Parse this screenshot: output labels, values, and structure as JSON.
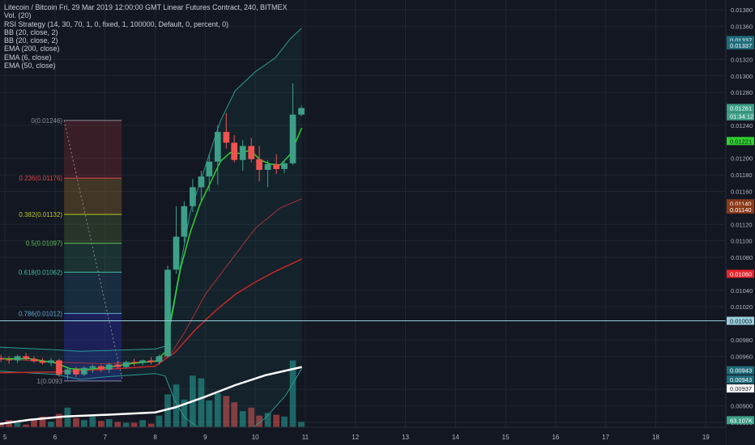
{
  "header": {
    "symbol_line": "Litecoin / Bitcoin Fri, 29 Mar 2019 12:00:00 GMT Linear Futures Contract, 240, BITMEX",
    "indicators": [
      "Vol. (20)",
      "RSI Strategy (14, 30, 70, 1, 0, fixed, 1, 100000, Default, 0, percent, 0)",
      "BB (20, close, 2)",
      "BB (20, close, 2)",
      "EMA (200, close)",
      "EMA (6, close)",
      "EMA (50, close)"
    ]
  },
  "colors": {
    "background": "#131722",
    "grid": "#222631",
    "up": "#26a69a",
    "up_fill": "#3d9f87",
    "down": "#ef5350",
    "ema6": "#2fd12f",
    "ema50": "#c62828",
    "ema200": "#ffffff"
  },
  "chart_data": {
    "type": "candlestick",
    "x_ticks": [
      "5",
      "6",
      "7",
      "8",
      "9",
      "10",
      "11",
      "12",
      "13",
      "14",
      "15",
      "16",
      "17",
      "18",
      "19"
    ],
    "y_ticks": [
      "0.01380",
      "0.01360",
      "0.01320",
      "0.01300",
      "0.01280",
      "0.01240",
      "0.01200",
      "0.01180",
      "0.01160",
      "0.01120",
      "0.01100",
      "0.01080",
      "0.01040",
      "0.01020",
      "0.00980",
      "0.00960",
      "0.00920",
      "0.00900",
      "0.00880"
    ],
    "y_range": [
      0.00874,
      0.01392
    ],
    "x_range": [
      4.9,
      19.4
    ],
    "price_badges": [
      {
        "label": "0.01337",
        "value": 0.013435,
        "bg": "#1e6b7a",
        "fg": "#ffffff"
      },
      {
        "label": "0.01337",
        "value": 0.01337,
        "bg": "#1e6b7a",
        "fg": "#ffffff"
      },
      {
        "label": "0.01261",
        "value": 0.01261,
        "bg": "#3d9f87",
        "fg": "#ffffff"
      },
      {
        "label": "01:34:12",
        "value": 0.01251,
        "bg": "#3d9f87",
        "fg": "#ffffff"
      },
      {
        "label": "0.01221",
        "value": 0.01221,
        "bg": "#2fd12f",
        "fg": "#131722"
      },
      {
        "label": "0.01140",
        "value": 0.011455,
        "bg": "#8b3a1a",
        "fg": "#ffffff"
      },
      {
        "label": "0.01140",
        "value": 0.01138,
        "bg": "#8b3a1a",
        "fg": "#ffffff"
      },
      {
        "label": "0.01060",
        "value": 0.0106,
        "bg": "#e8232a",
        "fg": "#ffffff"
      },
      {
        "label": "0.01003",
        "value": 0.01003,
        "bg": "#9ad1de",
        "fg": "#131722"
      },
      {
        "label": "0.00943",
        "value": 0.00943,
        "bg": "#1e6b7a",
        "fg": "#ffffff"
      },
      {
        "label": "0.00943",
        "value": 0.00932,
        "bg": "#1e6b7a",
        "fg": "#ffffff"
      },
      {
        "label": "0.00937",
        "value": 0.00921,
        "bg": "#ffffff",
        "fg": "#131722"
      },
      {
        "label": "63.107K",
        "value": 0.008825,
        "bg": "#3d9f87",
        "fg": "#ffffff"
      }
    ],
    "horizontal_line": 0.01003,
    "fib": {
      "x_start": 6.18,
      "x_end": 7.33,
      "levels": [
        {
          "label": "0(0.01246)",
          "value": 0.01246,
          "color": "#8a8d96",
          "fill": "rgba(200,60,60,0.22)"
        },
        {
          "label": "0.236(0.01176)",
          "value": 0.01176,
          "color": "#d84a4a",
          "fill": "rgba(190,140,50,0.28)"
        },
        {
          "label": "0.382(0.01132)",
          "value": 0.01132,
          "color": "#b7c728",
          "fill": "rgba(100,140,60,0.25)"
        },
        {
          "label": "0.5(0.01097)",
          "value": 0.01097,
          "color": "#5cc15c",
          "fill": "rgba(60,150,110,0.22)"
        },
        {
          "label": "0.618(0.01062)",
          "value": 0.01062,
          "color": "#3fbf9f",
          "fill": "rgba(40,100,140,0.28)"
        },
        {
          "label": "0.786(0.01012)",
          "value": 0.01012,
          "color": "#5fa8d0",
          "fill": "rgba(40,50,170,0.40)"
        },
        {
          "label": "1(0.0093",
          "value": 0.0093,
          "color": "#8a8d96",
          "fill": ""
        }
      ]
    },
    "candles": [
      {
        "t": 4.92,
        "o": 0.00958,
        "h": 0.00962,
        "l": 0.00953,
        "c": 0.00956
      },
      {
        "t": 5.08,
        "o": 0.00956,
        "h": 0.0096,
        "l": 0.00951,
        "c": 0.00955
      },
      {
        "t": 5.25,
        "o": 0.00955,
        "h": 0.00962,
        "l": 0.00952,
        "c": 0.0096
      },
      {
        "t": 5.42,
        "o": 0.0096,
        "h": 0.00964,
        "l": 0.00955,
        "c": 0.00957
      },
      {
        "t": 5.58,
        "o": 0.00957,
        "h": 0.0096,
        "l": 0.00952,
        "c": 0.00954
      },
      {
        "t": 5.75,
        "o": 0.00954,
        "h": 0.00958,
        "l": 0.0095,
        "c": 0.00952
      },
      {
        "t": 5.92,
        "o": 0.00952,
        "h": 0.00958,
        "l": 0.00948,
        "c": 0.00955
      },
      {
        "t": 6.08,
        "o": 0.00955,
        "h": 0.00957,
        "l": 0.00935,
        "c": 0.00938
      },
      {
        "t": 6.25,
        "o": 0.00938,
        "h": 0.00946,
        "l": 0.00932,
        "c": 0.00944
      },
      {
        "t": 6.42,
        "o": 0.00944,
        "h": 0.00947,
        "l": 0.00935,
        "c": 0.00938
      },
      {
        "t": 6.58,
        "o": 0.00938,
        "h": 0.00948,
        "l": 0.00936,
        "c": 0.00946
      },
      {
        "t": 6.75,
        "o": 0.00946,
        "h": 0.0095,
        "l": 0.0094,
        "c": 0.00948
      },
      {
        "t": 6.92,
        "o": 0.00948,
        "h": 0.0095,
        "l": 0.00941,
        "c": 0.00944
      },
      {
        "t": 7.08,
        "o": 0.00944,
        "h": 0.00952,
        "l": 0.0094,
        "c": 0.0095
      },
      {
        "t": 7.25,
        "o": 0.0095,
        "h": 0.00954,
        "l": 0.00945,
        "c": 0.00947
      },
      {
        "t": 7.42,
        "o": 0.00947,
        "h": 0.00955,
        "l": 0.00945,
        "c": 0.00953
      },
      {
        "t": 7.58,
        "o": 0.00953,
        "h": 0.00957,
        "l": 0.00948,
        "c": 0.00952
      },
      {
        "t": 7.75,
        "o": 0.00952,
        "h": 0.00956,
        "l": 0.00949,
        "c": 0.00955
      },
      {
        "t": 7.92,
        "o": 0.00955,
        "h": 0.00959,
        "l": 0.0095,
        "c": 0.00953
      },
      {
        "t": 8.08,
        "o": 0.00953,
        "h": 0.00962,
        "l": 0.0095,
        "c": 0.0096
      },
      {
        "t": 8.25,
        "o": 0.0096,
        "h": 0.0107,
        "l": 0.00958,
        "c": 0.01065
      },
      {
        "t": 8.42,
        "o": 0.01065,
        "h": 0.01142,
        "l": 0.0106,
        "c": 0.01105
      },
      {
        "t": 8.58,
        "o": 0.01105,
        "h": 0.01148,
        "l": 0.01098,
        "c": 0.01142
      },
      {
        "t": 8.75,
        "o": 0.01142,
        "h": 0.01175,
        "l": 0.01135,
        "c": 0.01165
      },
      {
        "t": 8.92,
        "o": 0.01165,
        "h": 0.01185,
        "l": 0.01148,
        "c": 0.01178
      },
      {
        "t": 9.08,
        "o": 0.01178,
        "h": 0.01205,
        "l": 0.0116,
        "c": 0.01196
      },
      {
        "t": 9.25,
        "o": 0.01196,
        "h": 0.0124,
        "l": 0.01168,
        "c": 0.01232
      },
      {
        "t": 9.42,
        "o": 0.01232,
        "h": 0.01255,
        "l": 0.01212,
        "c": 0.01219
      },
      {
        "t": 9.58,
        "o": 0.01219,
        "h": 0.01228,
        "l": 0.01195,
        "c": 0.01198
      },
      {
        "t": 9.75,
        "o": 0.01198,
        "h": 0.01222,
        "l": 0.01185,
        "c": 0.01215
      },
      {
        "t": 9.92,
        "o": 0.01215,
        "h": 0.01225,
        "l": 0.01195,
        "c": 0.01199
      },
      {
        "t": 10.08,
        "o": 0.01199,
        "h": 0.01215,
        "l": 0.01172,
        "c": 0.01186
      },
      {
        "t": 10.25,
        "o": 0.01186,
        "h": 0.01198,
        "l": 0.01165,
        "c": 0.01193
      },
      {
        "t": 10.42,
        "o": 0.01193,
        "h": 0.01205,
        "l": 0.01181,
        "c": 0.01187
      },
      {
        "t": 10.58,
        "o": 0.01187,
        "h": 0.01198,
        "l": 0.01182,
        "c": 0.01194
      },
      {
        "t": 10.75,
        "o": 0.01194,
        "h": 0.01291,
        "l": 0.01192,
        "c": 0.01253
      },
      {
        "t": 10.92,
        "o": 0.01253,
        "h": 0.01264,
        "l": 0.01251,
        "c": 0.01261
      }
    ],
    "volume_relative": [
      0.05,
      0.08,
      0.05,
      0.03,
      0.09,
      0.12,
      0.06,
      0.15,
      0.22,
      0.1,
      0.08,
      0.12,
      0.07,
      0.09,
      0.06,
      0.05,
      0.05,
      0.08,
      0.04,
      0.13,
      0.37,
      0.48,
      0.31,
      0.58,
      0.55,
      0.3,
      0.38,
      0.35,
      0.28,
      0.18,
      0.22,
      0.13,
      0.16,
      0.14,
      0.12,
      0.75,
      0.06
    ],
    "ema6": [
      [
        4.9,
        0.00957
      ],
      [
        5.5,
        0.00957
      ],
      [
        6.0,
        0.00952
      ],
      [
        6.3,
        0.00945
      ],
      [
        6.6,
        0.00944
      ],
      [
        7.0,
        0.00946
      ],
      [
        7.5,
        0.00951
      ],
      [
        8.0,
        0.00954
      ],
      [
        8.2,
        0.00965
      ],
      [
        8.35,
        0.01015
      ],
      [
        8.5,
        0.01065
      ],
      [
        8.7,
        0.0111
      ],
      [
        8.9,
        0.01145
      ],
      [
        9.1,
        0.0117
      ],
      [
        9.3,
        0.01196
      ],
      [
        9.5,
        0.01207
      ],
      [
        9.7,
        0.01206
      ],
      [
        9.9,
        0.0121
      ],
      [
        10.1,
        0.01198
      ],
      [
        10.3,
        0.01193
      ],
      [
        10.5,
        0.01192
      ],
      [
        10.7,
        0.01205
      ],
      [
        10.93,
        0.01237
      ]
    ],
    "ema50": [
      [
        4.9,
        0.0094
      ],
      [
        6.0,
        0.00941
      ],
      [
        7.0,
        0.00944
      ],
      [
        8.0,
        0.00948
      ],
      [
        8.4,
        0.00965
      ],
      [
        8.8,
        0.00992
      ],
      [
        9.2,
        0.01015
      ],
      [
        9.6,
        0.01035
      ],
      [
        10.0,
        0.0105
      ],
      [
        10.4,
        0.01063
      ],
      [
        10.93,
        0.01078
      ]
    ],
    "ema200": [
      [
        4.9,
        0.00878
      ],
      [
        5.5,
        0.00883
      ],
      [
        6.2,
        0.00887
      ],
      [
        7.0,
        0.00889
      ],
      [
        8.0,
        0.00892
      ],
      [
        8.4,
        0.00898
      ],
      [
        9.0,
        0.00911
      ],
      [
        9.6,
        0.00925
      ],
      [
        10.2,
        0.00937
      ],
      [
        10.93,
        0.00947
      ]
    ],
    "bb_upper": [
      [
        4.9,
        0.00971
      ],
      [
        6.0,
        0.00968
      ],
      [
        6.5,
        0.00966
      ],
      [
        7.0,
        0.00967
      ],
      [
        8.0,
        0.00969
      ],
      [
        8.2,
        0.00972
      ],
      [
        8.4,
        0.01035
      ],
      [
        8.7,
        0.01135
      ],
      [
        9.0,
        0.0119
      ],
      [
        9.3,
        0.01245
      ],
      [
        9.6,
        0.01282
      ],
      [
        10.0,
        0.01305
      ],
      [
        10.4,
        0.01322
      ],
      [
        10.7,
        0.01345
      ],
      [
        10.93,
        0.01358
      ]
    ],
    "bb_lower": [
      [
        4.9,
        0.00942
      ],
      [
        6.0,
        0.00938
      ],
      [
        6.5,
        0.00932
      ],
      [
        7.0,
        0.00935
      ],
      [
        8.0,
        0.00939
      ],
      [
        8.2,
        0.00936
      ],
      [
        8.4,
        0.00905
      ],
      [
        8.6,
        0.00885
      ],
      [
        9.0,
        0.00868
      ],
      [
        9.4,
        0.00862
      ],
      [
        9.8,
        0.00866
      ],
      [
        10.2,
        0.00885
      ],
      [
        10.6,
        0.00912
      ],
      [
        10.93,
        0.00945
      ]
    ],
    "bb_mid": [
      [
        4.9,
        0.00957
      ],
      [
        6.0,
        0.00953
      ],
      [
        7.0,
        0.00951
      ],
      [
        8.0,
        0.00954
      ],
      [
        8.3,
        0.00962
      ],
      [
        8.6,
        0.0099
      ],
      [
        9.0,
        0.01035
      ],
      [
        9.5,
        0.01075
      ],
      [
        10.0,
        0.01115
      ],
      [
        10.5,
        0.0114
      ],
      [
        10.93,
        0.01151
      ]
    ]
  }
}
